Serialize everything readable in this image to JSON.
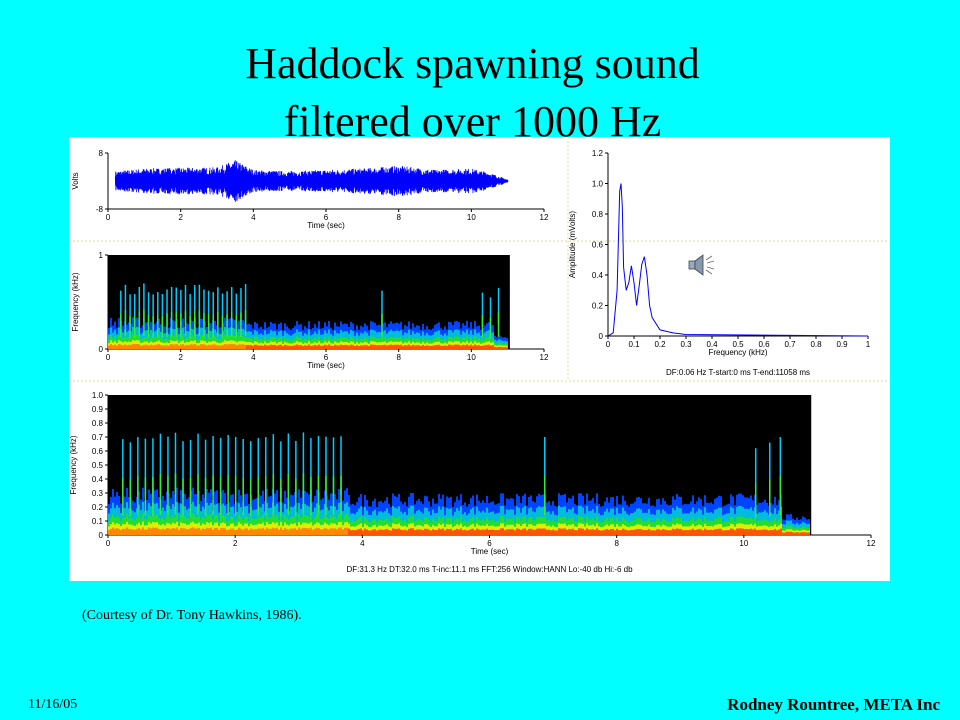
{
  "title": {
    "line1": "Haddock spawning sound",
    "line2": "filtered over 1000 Hz"
  },
  "caption": "(Courtesy of Dr. Tony Hawkins, 1986).",
  "footer": {
    "date": "11/16/05",
    "author": "Rodney Rountree, META Inc"
  },
  "colors": {
    "background": "#00FFFF",
    "waveform": "#0000FF",
    "spectrum_line": "#0000FF",
    "spectrogram_bg": "#000000"
  },
  "speaker_icon": "speaker-icon",
  "chart_data": [
    {
      "type": "line",
      "xlabel": "Time (sec)",
      "ylabel": "Volts",
      "xlim": [
        0,
        12
      ],
      "ylim": [
        -8,
        8
      ],
      "xticks": [
        0,
        2,
        4,
        6,
        8,
        10,
        12
      ],
      "yticks": [
        -8,
        8
      ],
      "series": [
        {
          "x": [
            0.2,
            1.0,
            2.0,
            3.0,
            3.5,
            4.0,
            5.0,
            6.0,
            7.0,
            8.0,
            9.0,
            10.0,
            10.5,
            11.0
          ],
          "values": [
            2.8,
            3.6,
            3.8,
            3.9,
            6.0,
            3.2,
            2.8,
            3.2,
            3.6,
            4.4,
            3.2,
            3.6,
            2.4,
            0.4
          ]
        }
      ]
    },
    {
      "type": "heatmap",
      "xlabel": "Time (sec)",
      "ylabel": "Frequency (kHz)",
      "xlim": [
        0,
        12
      ],
      "ylim": [
        0,
        1.0
      ],
      "xticks": [
        0,
        2,
        4,
        6,
        8,
        10,
        12
      ],
      "yticks": [
        0,
        1.0
      ],
      "data_end_time": 11.06
    },
    {
      "type": "line",
      "xlabel": "Frequency (kHz)",
      "ylabel": "Amplitude (mVolts)",
      "xlim": [
        0,
        1.0
      ],
      "ylim": [
        0,
        1.2
      ],
      "xticks": [
        0,
        0.1,
        0.2,
        0.3,
        0.4,
        0.5,
        0.6,
        0.7,
        0.8,
        0.9,
        1.0
      ],
      "yticks": [
        0,
        0.2,
        0.4,
        0.6,
        0.8,
        1.0,
        1.2
      ],
      "series": [
        {
          "x": [
            0,
            0.02,
            0.035,
            0.045,
            0.05,
            0.055,
            0.06,
            0.07,
            0.08,
            0.09,
            0.1,
            0.11,
            0.12,
            0.13,
            0.14,
            0.15,
            0.16,
            0.17,
            0.2,
            0.25,
            0.3,
            1.0
          ],
          "values": [
            0,
            0.02,
            0.3,
            0.95,
            1.0,
            0.85,
            0.45,
            0.3,
            0.35,
            0.46,
            0.35,
            0.2,
            0.33,
            0.47,
            0.52,
            0.4,
            0.2,
            0.12,
            0.04,
            0.02,
            0.01,
            0
          ]
        }
      ],
      "annotation": "DF:0.06 Hz    T-start:0 ms    T-end:11058 ms"
    },
    {
      "type": "heatmap",
      "xlabel": "Time (sec)",
      "ylabel": "Frequency (kHz)",
      "xlim": [
        0,
        12
      ],
      "ylim": [
        0,
        1.0
      ],
      "xticks": [
        0,
        2,
        4,
        6,
        8,
        10,
        12
      ],
      "yticks": [
        0,
        0.1,
        0.2,
        0.3,
        0.4,
        0.5,
        0.6,
        0.7,
        0.8,
        0.9,
        1.0
      ],
      "data_end_time": 11.06,
      "annotation": "DF:31.3 Hz    DT:32.0 ms    T-inc:11.1 ms    FFT:256    Window:HANN    Lo:-40 db    Hi:-6 db"
    }
  ]
}
